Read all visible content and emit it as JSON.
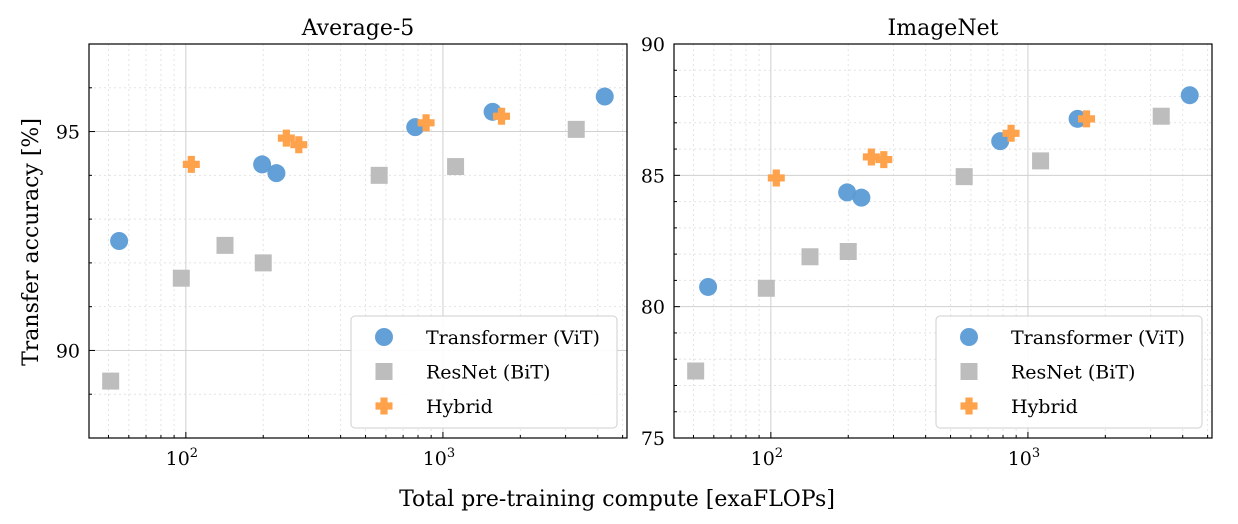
{
  "figure": {
    "xlabel": "Total pre-training compute [exaFLOPs]",
    "ylabel": "Transfer accuracy [%]"
  },
  "colors": {
    "transformer": "#5b9bd5",
    "resnet": "#bdbdbd",
    "hybrid": "#ffa24c"
  },
  "chart_data": [
    {
      "type": "scatter",
      "title": "Average-5",
      "xlabel": "Total pre-training compute [exaFLOPs]",
      "ylabel": "Transfer accuracy [%]",
      "xscale": "log",
      "xlim": [
        42,
        5200
      ],
      "ylim": [
        88.0,
        97.0
      ],
      "xticks": [
        {
          "value": 100,
          "base": "10",
          "exp": "2"
        },
        {
          "value": 1000,
          "base": "10",
          "exp": "3"
        }
      ],
      "yticks": [
        90,
        95
      ],
      "grid": true,
      "legend_position": "lower-right",
      "series": [
        {
          "name": "Transformer (ViT)",
          "marker": "circle",
          "x": [
            55,
            198,
            225,
            780,
            1560,
            4260
          ],
          "y": [
            92.5,
            94.25,
            94.05,
            95.1,
            95.45,
            95.8
          ]
        },
        {
          "name": "ResNet (BiT)",
          "marker": "square",
          "x": [
            51,
            96,
            142,
            200,
            565,
            1120,
            3300
          ],
          "y": [
            89.3,
            91.65,
            92.4,
            92.0,
            94.0,
            94.2,
            95.05
          ]
        },
        {
          "name": "Hybrid",
          "marker": "plus",
          "x": [
            105,
            246,
            275,
            860,
            1690
          ],
          "y": [
            94.25,
            94.85,
            94.7,
            95.2,
            95.35
          ]
        }
      ]
    },
    {
      "type": "scatter",
      "title": "ImageNet",
      "xlabel": "Total pre-training compute [exaFLOPs]",
      "ylabel": "",
      "xscale": "log",
      "xlim": [
        42,
        5200
      ],
      "ylim": [
        75,
        90
      ],
      "xticks": [
        {
          "value": 100,
          "base": "10",
          "exp": "2"
        },
        {
          "value": 1000,
          "base": "10",
          "exp": "3"
        }
      ],
      "yticks": [
        75,
        80,
        85,
        90
      ],
      "grid": true,
      "legend_position": "lower-right",
      "series": [
        {
          "name": "Transformer (ViT)",
          "marker": "circle",
          "x": [
            57,
            198,
            225,
            780,
            1560,
            4260
          ],
          "y": [
            80.75,
            84.35,
            84.15,
            86.3,
            87.15,
            88.05
          ]
        },
        {
          "name": "ResNet (BiT)",
          "marker": "square",
          "x": [
            51,
            96,
            142,
            200,
            565,
            1120,
            3300
          ],
          "y": [
            77.55,
            80.7,
            81.9,
            82.1,
            84.95,
            85.55,
            87.25
          ]
        },
        {
          "name": "Hybrid",
          "marker": "plus",
          "x": [
            105,
            246,
            275,
            860,
            1690
          ],
          "y": [
            84.9,
            85.7,
            85.6,
            86.6,
            87.15
          ]
        }
      ]
    }
  ]
}
